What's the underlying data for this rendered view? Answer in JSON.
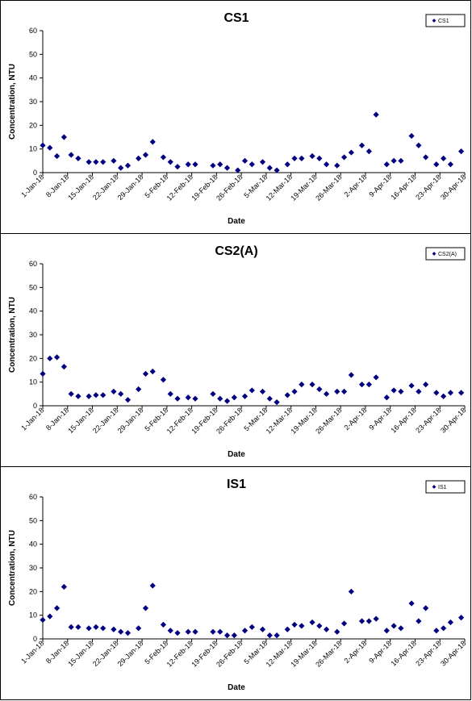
{
  "chart_data": [
    {
      "type": "scatter",
      "title": "CS1",
      "xlabel": "Date",
      "ylabel": "Concentration, NTU",
      "ylim": [
        0,
        60
      ],
      "yticks": [
        0,
        10,
        20,
        30,
        40,
        50,
        60
      ],
      "xlim": [
        "2018-01-01",
        "2018-04-30"
      ],
      "xtick_labels": [
        "1-Jan-18",
        "8-Jan-18",
        "15-Jan-18",
        "22-Jan-18",
        "29-Jan-18",
        "5-Feb-18",
        "12-Feb-18",
        "19-Feb-18",
        "26-Feb-18",
        "5-Mar-18",
        "12-Mar-18",
        "19-Mar-18",
        "26-Mar-18",
        "2-Apr-18",
        "9-Apr-18",
        "16-Apr-18",
        "23-Apr-18",
        "30-Apr-18"
      ],
      "legend_position": "top-right",
      "marker_color": "#000080",
      "series": [
        {
          "name": "CS1",
          "x": [
            "2018-01-01",
            "2018-01-03",
            "2018-01-05",
            "2018-01-07",
            "2018-01-09",
            "2018-01-11",
            "2018-01-14",
            "2018-01-16",
            "2018-01-18",
            "2018-01-21",
            "2018-01-23",
            "2018-01-25",
            "2018-01-28",
            "2018-01-30",
            "2018-02-01",
            "2018-02-04",
            "2018-02-06",
            "2018-02-08",
            "2018-02-11",
            "2018-02-13",
            "2018-02-18",
            "2018-02-20",
            "2018-02-22",
            "2018-02-25",
            "2018-02-27",
            "2018-03-01",
            "2018-03-04",
            "2018-03-06",
            "2018-03-08",
            "2018-03-11",
            "2018-03-13",
            "2018-03-15",
            "2018-03-18",
            "2018-03-20",
            "2018-03-22",
            "2018-03-25",
            "2018-03-27",
            "2018-03-29",
            "2018-04-01",
            "2018-04-03",
            "2018-04-05",
            "2018-04-08",
            "2018-04-10",
            "2018-04-12",
            "2018-04-15",
            "2018-04-17",
            "2018-04-19",
            "2018-04-22",
            "2018-04-24",
            "2018-04-26",
            "2018-04-29"
          ],
          "values": [
            11.5,
            10.5,
            7,
            15,
            7.5,
            6,
            4.5,
            4.5,
            4.5,
            5,
            2,
            3,
            6,
            7.5,
            13,
            6.5,
            4.5,
            2.5,
            3.5,
            3.5,
            3,
            3.5,
            2,
            1,
            5,
            3.5,
            4.5,
            2,
            1,
            3.5,
            6,
            6,
            7,
            6,
            3.5,
            3,
            6.5,
            8.5,
            11.5,
            9,
            24.5,
            3.5,
            5,
            5,
            15.5,
            11.5,
            6.5,
            3.5,
            6,
            3.5,
            9
          ]
        }
      ]
    },
    {
      "type": "scatter",
      "title": "CS2(A)",
      "xlabel": "Date",
      "ylabel": "Concentration, NTU",
      "ylim": [
        0,
        60
      ],
      "yticks": [
        0,
        10,
        20,
        30,
        40,
        50,
        60
      ],
      "xlim": [
        "2018-01-01",
        "2018-04-30"
      ],
      "xtick_labels": [
        "1-Jan-18",
        "8-Jan-18",
        "15-Jan-18",
        "22-Jan-18",
        "29-Jan-18",
        "5-Feb-18",
        "12-Feb-18",
        "19-Feb-18",
        "26-Feb-18",
        "5-Mar-18",
        "12-Mar-18",
        "19-Mar-18",
        "26-Mar-18",
        "2-Apr-18",
        "9-Apr-18",
        "16-Apr-18",
        "23-Apr-18",
        "30-Apr-18"
      ],
      "legend_position": "top-right",
      "marker_color": "#000080",
      "series": [
        {
          "name": "CS2(A)",
          "x": [
            "2018-01-01",
            "2018-01-03",
            "2018-01-05",
            "2018-01-07",
            "2018-01-09",
            "2018-01-11",
            "2018-01-14",
            "2018-01-16",
            "2018-01-18",
            "2018-01-21",
            "2018-01-23",
            "2018-01-25",
            "2018-01-28",
            "2018-01-30",
            "2018-02-01",
            "2018-02-04",
            "2018-02-06",
            "2018-02-08",
            "2018-02-11",
            "2018-02-13",
            "2018-02-18",
            "2018-02-20",
            "2018-02-22",
            "2018-02-24",
            "2018-02-27",
            "2018-03-01",
            "2018-03-04",
            "2018-03-06",
            "2018-03-08",
            "2018-03-11",
            "2018-03-13",
            "2018-03-15",
            "2018-03-18",
            "2018-03-20",
            "2018-03-22",
            "2018-03-25",
            "2018-03-27",
            "2018-03-29",
            "2018-04-01",
            "2018-04-03",
            "2018-04-05",
            "2018-04-08",
            "2018-04-10",
            "2018-04-12",
            "2018-04-15",
            "2018-04-17",
            "2018-04-19",
            "2018-04-22",
            "2018-04-24",
            "2018-04-26",
            "2018-04-29"
          ],
          "values": [
            13.5,
            20,
            20.5,
            16.5,
            5,
            4,
            4,
            4.5,
            4.5,
            6,
            5,
            2.5,
            7,
            13.5,
            14.5,
            11,
            5,
            3,
            3.5,
            3,
            5,
            3,
            2,
            3.5,
            4,
            6.5,
            6,
            3,
            1.5,
            4.5,
            6,
            9,
            9,
            7,
            5,
            6,
            6,
            13,
            9,
            9,
            12,
            3.5,
            6.5,
            6,
            8.5,
            6,
            9,
            5.5,
            4,
            5.5,
            5.5
          ]
        }
      ]
    },
    {
      "type": "scatter",
      "title": "IS1",
      "xlabel": "Date",
      "ylabel": "Concentration, NTU",
      "ylim": [
        0,
        60
      ],
      "yticks": [
        0,
        10,
        20,
        30,
        40,
        50,
        60
      ],
      "xlim": [
        "2018-01-01",
        "2018-04-30"
      ],
      "xtick_labels": [
        "1-Jan-18",
        "8-Jan-18",
        "15-Jan-18",
        "22-Jan-18",
        "29-Jan-18",
        "5-Feb-18",
        "12-Feb-18",
        "19-Feb-18",
        "26-Feb-18",
        "5-Mar-18",
        "12-Mar-18",
        "19-Mar-18",
        "26-Mar-18",
        "2-Apr-18",
        "9-Apr-18",
        "16-Apr-18",
        "23-Apr-18",
        "30-Apr-18"
      ],
      "legend_position": "top-right",
      "marker_color": "#000080",
      "series": [
        {
          "name": "IS1",
          "x": [
            "2018-01-01",
            "2018-01-03",
            "2018-01-05",
            "2018-01-07",
            "2018-01-09",
            "2018-01-11",
            "2018-01-14",
            "2018-01-16",
            "2018-01-18",
            "2018-01-21",
            "2018-01-23",
            "2018-01-25",
            "2018-01-28",
            "2018-01-30",
            "2018-02-01",
            "2018-02-04",
            "2018-02-06",
            "2018-02-08",
            "2018-02-11",
            "2018-02-13",
            "2018-02-18",
            "2018-02-20",
            "2018-02-22",
            "2018-02-24",
            "2018-02-27",
            "2018-03-01",
            "2018-03-04",
            "2018-03-06",
            "2018-03-08",
            "2018-03-11",
            "2018-03-13",
            "2018-03-15",
            "2018-03-18",
            "2018-03-20",
            "2018-03-22",
            "2018-03-25",
            "2018-03-27",
            "2018-03-29",
            "2018-04-01",
            "2018-04-03",
            "2018-04-05",
            "2018-04-08",
            "2018-04-10",
            "2018-04-12",
            "2018-04-15",
            "2018-04-17",
            "2018-04-19",
            "2018-04-22",
            "2018-04-24",
            "2018-04-26",
            "2018-04-29"
          ],
          "values": [
            8,
            9.5,
            13,
            22,
            5,
            5,
            4.5,
            5,
            4.5,
            4,
            3,
            2.5,
            4.5,
            13,
            22.5,
            6,
            3.5,
            2.5,
            3,
            3,
            3,
            3,
            1.5,
            1.5,
            3.5,
            5,
            4,
            1.5,
            1.5,
            4,
            6,
            5.5,
            7,
            5.5,
            4,
            3,
            6.5,
            20,
            7.5,
            7.5,
            8.5,
            3.5,
            5.5,
            4.5,
            15,
            7.5,
            13,
            3.5,
            4.5,
            7,
            9
          ]
        }
      ]
    }
  ]
}
